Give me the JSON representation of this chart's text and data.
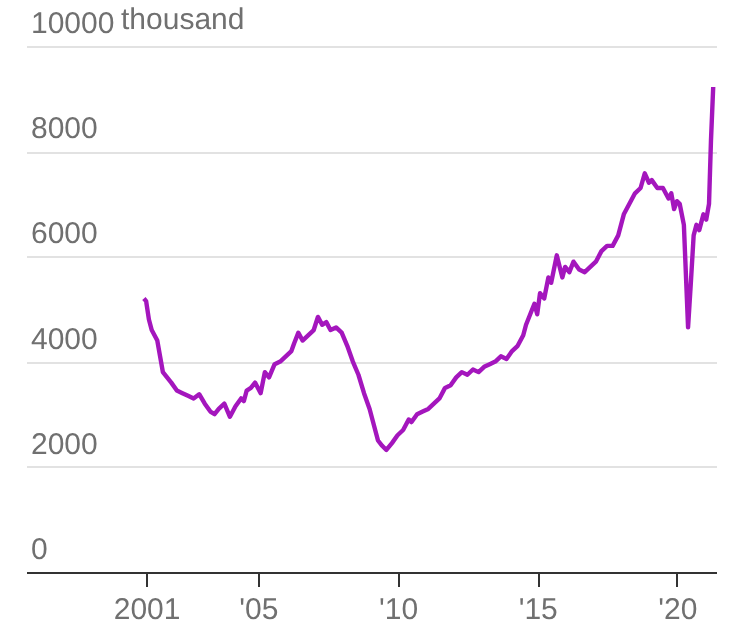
{
  "chart_data": {
    "type": "line",
    "ylabel": "thousand",
    "x": [
      2000.92,
      2001.0,
      2001.1,
      2001.2,
      2001.3,
      2001.4,
      2001.5,
      2001.6,
      2001.75,
      2001.9,
      2002.1,
      2002.3,
      2002.5,
      2002.7,
      2002.9,
      2003.1,
      2003.3,
      2003.45,
      2003.6,
      2003.8,
      2004.0,
      2004.2,
      2004.4,
      2004.5,
      2004.6,
      2004.75,
      2004.9,
      2005.1,
      2005.25,
      2005.4,
      2005.6,
      2005.8,
      2006.0,
      2006.2,
      2006.3,
      2006.45,
      2006.6,
      2006.8,
      2007.0,
      2007.15,
      2007.3,
      2007.45,
      2007.6,
      2007.8,
      2008.0,
      2008.2,
      2008.4,
      2008.6,
      2008.8,
      2009.0,
      2009.15,
      2009.3,
      2009.45,
      2009.6,
      2009.8,
      2010.0,
      2010.2,
      2010.4,
      2010.5,
      2010.7,
      2010.9,
      2011.1,
      2011.3,
      2011.5,
      2011.7,
      2011.9,
      2012.1,
      2012.3,
      2012.5,
      2012.7,
      2012.9,
      2013.1,
      2013.3,
      2013.5,
      2013.7,
      2013.9,
      2014.1,
      2014.3,
      2014.5,
      2014.6,
      2014.75,
      2014.9,
      2015.0,
      2015.1,
      2015.25,
      2015.4,
      2015.5,
      2015.7,
      2015.9,
      2016.0,
      2016.15,
      2016.3,
      2016.5,
      2016.7,
      2016.9,
      2017.1,
      2017.3,
      2017.5,
      2017.7,
      2017.9,
      2018.1,
      2018.3,
      2018.5,
      2018.7,
      2018.85,
      2019.0,
      2019.1,
      2019.3,
      2019.5,
      2019.7,
      2019.8,
      2019.9,
      2020.0,
      2020.1,
      2020.25,
      2020.4,
      2020.5,
      2020.6,
      2020.7,
      2020.8,
      2020.95,
      2021.05,
      2021.15,
      2021.22,
      2021.3
    ],
    "values": [
      5200,
      5150,
      4800,
      4600,
      4500,
      4400,
      4100,
      3800,
      3700,
      3600,
      3450,
      3400,
      3350,
      3300,
      3380,
      3200,
      3050,
      3000,
      3100,
      3200,
      2950,
      3150,
      3300,
      3250,
      3450,
      3500,
      3600,
      3400,
      3800,
      3700,
      3950,
      4000,
      4100,
      4200,
      4350,
      4550,
      4400,
      4500,
      4600,
      4850,
      4700,
      4750,
      4600,
      4650,
      4550,
      4300,
      4000,
      3750,
      3400,
      3100,
      2800,
      2500,
      2400,
      2320,
      2450,
      2600,
      2700,
      2900,
      2850,
      3000,
      3050,
      3100,
      3200,
      3300,
      3500,
      3550,
      3700,
      3800,
      3750,
      3850,
      3800,
      3900,
      3950,
      4000,
      4100,
      4050,
      4200,
      4300,
      4500,
      4700,
      4900,
      5100,
      4900,
      5300,
      5200,
      5600,
      5500,
      6020,
      5600,
      5800,
      5700,
      5900,
      5750,
      5700,
      5800,
      5900,
      6100,
      6200,
      6200,
      6400,
      6800,
      7000,
      7200,
      7300,
      7580,
      7400,
      7450,
      7300,
      7300,
      7100,
      7200,
      6900,
      7050,
      7000,
      6600,
      4650,
      5500,
      6400,
      6600,
      6500,
      6800,
      6700,
      7000,
      8200,
      9220
    ],
    "color": "#a416bd",
    "xlim": [
      1996.7,
      2021.4
    ],
    "xticks": [
      {
        "value": 2001,
        "label": "2001"
      },
      {
        "value": 2005,
        "label": "'05"
      },
      {
        "value": 2010,
        "label": "'10"
      },
      {
        "value": 2015,
        "label": "'15"
      },
      {
        "value": 2020,
        "label": "'20"
      }
    ],
    "ylim": [
      0,
      10000
    ],
    "yticks": [
      0,
      2000,
      4000,
      6000,
      8000,
      10000
    ],
    "grid": "y",
    "marker": "none",
    "line_style": "solid"
  }
}
